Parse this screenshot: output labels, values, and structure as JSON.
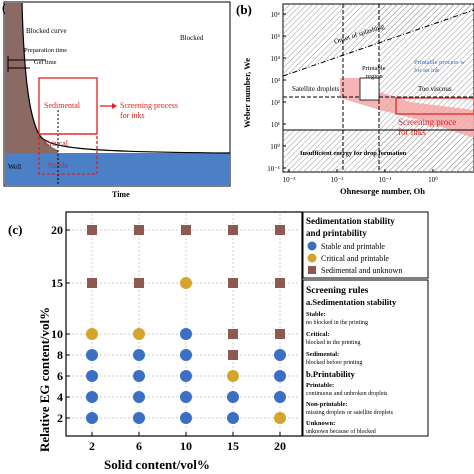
{
  "panel_a": {
    "letter": "(a)",
    "labels": {
      "blocked_curve": "Blocked curve",
      "blocked": "Blocked",
      "preparation_time": "Preparation time",
      "gel_time": "Gel time",
      "sedimental": "Sedimental",
      "screening": "Screening process",
      "for_inks": "for inks",
      "critical": "Critical",
      "stable": "Stable",
      "well": "Well",
      "xlabel": "Time"
    },
    "colors": {
      "brown": "#8c6a64",
      "yellow": "#e0b33a",
      "blue": "#4b7fc6",
      "red": "#e0201e"
    }
  },
  "panel_b": {
    "letter": "(b)",
    "labels": {
      "onset": "Onset of splashing",
      "printable_region_1": "Printable",
      "printable_region_2": "region",
      "printable_process_1": "Printable process w",
      "printable_process_2": "for an ink",
      "satellite": "Satellite droplets",
      "too_viscous": "Too viscous",
      "screening_1": "Screening proce",
      "screening_2": "for inks",
      "insufficient": "Insufficient energy for drop formation",
      "xlabel": "Ohnesorge number, Oh",
      "ylabel": "Weber number, We"
    },
    "x_ticks": [
      "10⁻³",
      "10⁻²",
      "10⁻¹",
      "10⁰",
      "10¹"
    ],
    "y_ticks": [
      "10⁶",
      "10⁵",
      "10⁴",
      "10³",
      "10²",
      "10¹",
      "10⁰",
      "10⁻¹"
    ]
  },
  "chart_data": {
    "type": "scatter",
    "panel_letter": "(c)",
    "xlabel": "Solid content/vol%",
    "ylabel": "Relative EG content/vol%",
    "categories_x": [
      2,
      6,
      10,
      15,
      20
    ],
    "categories_y": [
      2,
      4,
      6,
      8,
      10,
      15,
      20
    ],
    "grid": true,
    "legend_title": "Sedimentation stability and printability",
    "series": [
      {
        "name": "Stable and printable",
        "marker": "circle",
        "color": "#3a6fc4",
        "points": [
          [
            2,
            2
          ],
          [
            2,
            4
          ],
          [
            2,
            6
          ],
          [
            2,
            8
          ],
          [
            6,
            2
          ],
          [
            6,
            4
          ],
          [
            6,
            6
          ],
          [
            6,
            8
          ],
          [
            10,
            2
          ],
          [
            10,
            4
          ],
          [
            10,
            6
          ],
          [
            10,
            8
          ],
          [
            10,
            10
          ],
          [
            15,
            2
          ],
          [
            15,
            4
          ],
          [
            20,
            4
          ],
          [
            20,
            6
          ],
          [
            20,
            8
          ]
        ]
      },
      {
        "name": "Critical and printable",
        "marker": "circle",
        "color": "#d4a52c",
        "points": [
          [
            2,
            10
          ],
          [
            6,
            10
          ],
          [
            10,
            15
          ],
          [
            15,
            6
          ],
          [
            20,
            2
          ]
        ]
      },
      {
        "name": "Sedimental and unknown",
        "marker": "square",
        "color": "#8c5a50",
        "points": [
          [
            2,
            15
          ],
          [
            2,
            20
          ],
          [
            6,
            15
          ],
          [
            6,
            20
          ],
          [
            10,
            20
          ],
          [
            15,
            8
          ],
          [
            15,
            10
          ],
          [
            15,
            15
          ],
          [
            15,
            20
          ],
          [
            20,
            10
          ],
          [
            20,
            15
          ],
          [
            20,
            20
          ]
        ]
      }
    ],
    "rules": {
      "title": "Screening rules",
      "a_title": "a.Sedimentation stability",
      "stable_h": "Stable:",
      "stable_t": "no blocked in the printing",
      "critical_h": "Critical:",
      "critical_t": "blocked in the printing",
      "sedimental_h": "Sedimental:",
      "sedimental_t": "blocked before printing",
      "b_title": "b.Printability",
      "printable_h": "Printable:",
      "printable_t": "continuous and unbroken droplets",
      "nonprintable_h": "Non-printable:",
      "nonprintable_t": "missing droplets or satellite droplets",
      "unknown_h": "Unknown:",
      "unknown_t": "unknown because of blocked"
    }
  }
}
